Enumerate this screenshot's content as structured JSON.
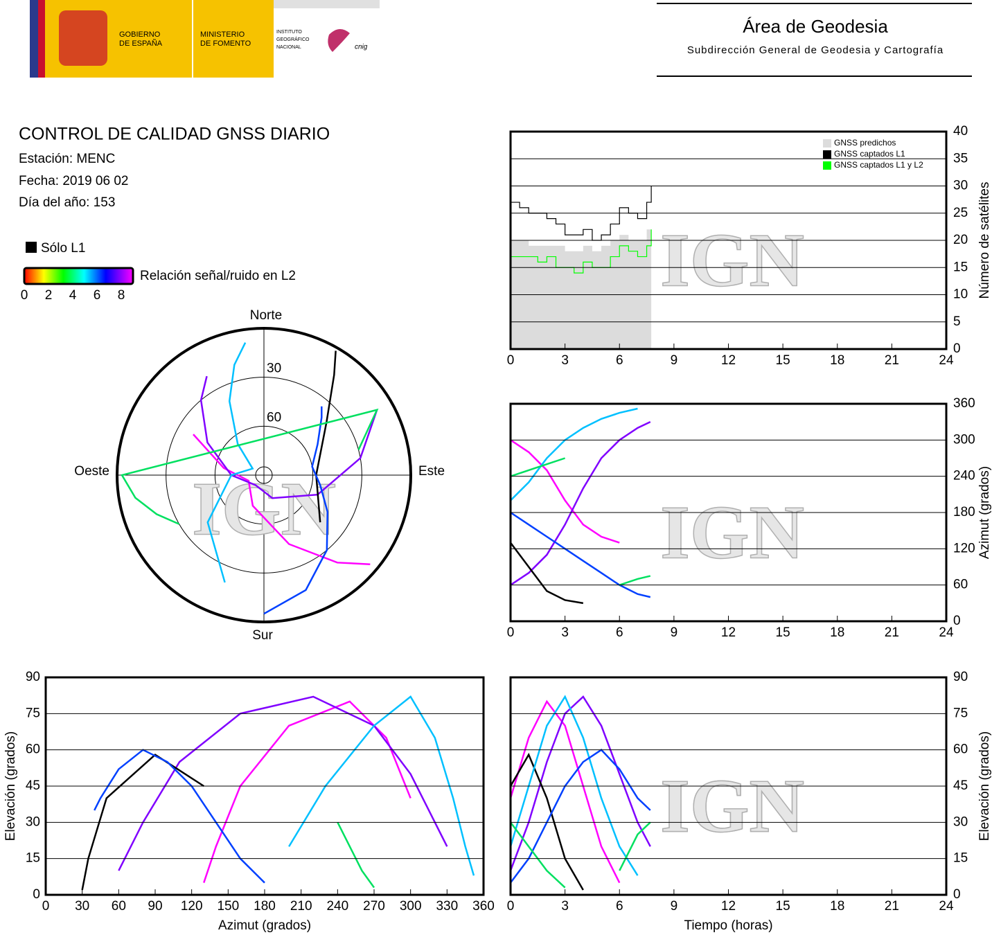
{
  "header": {
    "gov": [
      "GOBIERNO",
      "DE ESPAÑA"
    ],
    "ministry": [
      "MINISTERIO",
      "DE FOMENTO"
    ],
    "institute": [
      "INSTITUTO",
      "GEOGRÁFICO",
      "NACIONAL"
    ],
    "brand": "cnig",
    "area": "Área de Geodesia",
    "subdirection": "Subdirección General de Geodesia y Cartografía"
  },
  "info": {
    "title": "CONTROL DE CALIDAD GNSS DIARIO",
    "station": "Estación: MENC",
    "date": "Fecha: 2019 06 02",
    "doy": "Día del año: 153",
    "only_l1": "Sólo L1",
    "colorbar_label": "Relación señal/ruido en L2",
    "colorbar_ticks": [
      0,
      2,
      4,
      6,
      8
    ]
  },
  "watermark": "IGN",
  "chart_data": [
    {
      "type": "polar",
      "directions": {
        "north": "Norte",
        "south": "Sur",
        "east": "Este",
        "west": "Oeste"
      },
      "rticks": [
        30,
        60
      ],
      "series": [
        {
          "color": "#ff00ff",
          "x": [
            300,
            280,
            250,
            200,
            160,
            140,
            130
          ],
          "values": [
            40,
            65,
            80,
            70,
            45,
            20,
            5
          ]
        },
        {
          "color": "#8000ff",
          "x": [
            60,
            80,
            110,
            160,
            220,
            270,
            300,
            320,
            330
          ],
          "values": [
            10,
            30,
            55,
            75,
            82,
            70,
            50,
            30,
            20
          ]
        },
        {
          "color": "#000000",
          "x": [
            130,
            90,
            50,
            35,
            30
          ],
          "values": [
            45,
            58,
            40,
            15,
            2
          ]
        },
        {
          "color": "#00c0ff",
          "x": [
            200,
            230,
            270,
            300,
            320,
            335,
            345,
            352
          ],
          "values": [
            20,
            45,
            70,
            82,
            65,
            40,
            20,
            8
          ]
        },
        {
          "color": "#0040ff",
          "x": [
            180,
            160,
            140,
            120,
            100,
            80,
            60,
            45,
            40
          ],
          "values": [
            5,
            15,
            30,
            45,
            55,
            60,
            52,
            40,
            35
          ]
        },
        {
          "color": "#00e060",
          "x": [
            240,
            250,
            260,
            270,
            60,
            70,
            75
          ],
          "values": [
            30,
            20,
            10,
            3,
            10,
            25,
            30
          ]
        }
      ]
    },
    {
      "type": "step",
      "ylabel": "Número de satélites",
      "y_axis_position": "right",
      "legend": "upper right",
      "xlim": [
        0,
        24
      ],
      "xticks": [
        0,
        3,
        6,
        9,
        12,
        15,
        18,
        21,
        24
      ],
      "ylim": [
        0,
        40
      ],
      "yticks": [
        0,
        5,
        10,
        15,
        20,
        25,
        30,
        35,
        40
      ],
      "grid": true,
      "x": [
        0,
        0.5,
        1,
        1.5,
        2,
        2.5,
        3,
        3.5,
        4,
        4.5,
        5,
        5.5,
        6,
        6.5,
        7,
        7.5,
        7.75
      ],
      "series": [
        {
          "name": "GNSS predichos",
          "color": "#dcdcdc",
          "fill": true,
          "values": [
            20,
            20,
            19,
            19,
            19,
            19,
            18,
            18,
            19,
            18,
            19,
            20,
            21,
            20,
            20,
            22,
            24
          ]
        },
        {
          "name": "GNSS captados L1",
          "color": "#000000",
          "values": [
            27,
            26,
            25,
            25,
            24,
            23,
            21,
            21,
            22,
            20,
            21,
            23,
            26,
            25,
            24,
            27,
            30
          ]
        },
        {
          "name": "GNSS captados L1 y L2",
          "color": "#00ff00",
          "values": [
            17,
            17,
            17,
            16,
            17,
            15,
            15,
            14,
            16,
            15,
            15,
            17,
            19,
            18,
            17,
            19,
            22
          ]
        }
      ]
    },
    {
      "type": "line",
      "ylabel": "Azimut (grados)",
      "y_axis_position": "right",
      "xlim": [
        0,
        24
      ],
      "xticks": [
        0,
        3,
        6,
        9,
        12,
        15,
        18,
        21,
        24
      ],
      "ylim": [
        0,
        360
      ],
      "yticks": [
        0,
        60,
        120,
        180,
        240,
        300,
        360
      ],
      "grid": true,
      "x": [
        0,
        1,
        2,
        3,
        4,
        5,
        6,
        7,
        7.7
      ],
      "series": [
        {
          "color": "#ff00ff",
          "values": [
            300,
            280,
            250,
            200,
            160,
            140,
            130,
            null,
            null
          ]
        },
        {
          "color": "#8000ff",
          "values": [
            60,
            80,
            110,
            160,
            220,
            270,
            300,
            320,
            330
          ]
        },
        {
          "color": "#000000",
          "values": [
            130,
            90,
            50,
            35,
            30,
            null,
            null,
            null,
            null
          ]
        },
        {
          "color": "#00c0ff",
          "values": [
            200,
            230,
            270,
            300,
            320,
            335,
            345,
            352,
            null
          ]
        },
        {
          "color": "#0040ff",
          "values": [
            180,
            160,
            140,
            120,
            100,
            80,
            60,
            45,
            40
          ]
        },
        {
          "color": "#00e060",
          "values": [
            240,
            250,
            260,
            270,
            null,
            null,
            60,
            70,
            75
          ]
        }
      ]
    },
    {
      "type": "line",
      "xlabel": "Azimut (grados)",
      "ylabel": "Elevación (grados)",
      "y_axis_position": "left",
      "xlim": [
        0,
        360
      ],
      "xticks": [
        0,
        30,
        60,
        90,
        120,
        150,
        180,
        210,
        240,
        270,
        300,
        330,
        360
      ],
      "ylim": [
        0,
        90
      ],
      "yticks": [
        0,
        15,
        30,
        45,
        60,
        75,
        90
      ],
      "grid": true,
      "series": [
        {
          "color": "#ff00ff",
          "x": [
            300,
            280,
            250,
            200,
            160,
            140,
            130
          ],
          "values": [
            40,
            65,
            80,
            70,
            45,
            20,
            5
          ]
        },
        {
          "color": "#8000ff",
          "x": [
            60,
            80,
            110,
            160,
            220,
            270,
            300,
            320,
            330
          ],
          "values": [
            10,
            30,
            55,
            75,
            82,
            70,
            50,
            30,
            20
          ]
        },
        {
          "color": "#000000",
          "x": [
            130,
            90,
            50,
            35,
            30
          ],
          "values": [
            45,
            58,
            40,
            15,
            2
          ]
        },
        {
          "color": "#00c0ff",
          "x": [
            200,
            230,
            270,
            300,
            320,
            335,
            345,
            352
          ],
          "values": [
            20,
            45,
            70,
            82,
            65,
            40,
            20,
            8
          ]
        },
        {
          "color": "#0040ff",
          "x": [
            180,
            160,
            140,
            120,
            100,
            80,
            60,
            45,
            40
          ],
          "values": [
            5,
            15,
            30,
            45,
            55,
            60,
            52,
            40,
            35
          ]
        },
        {
          "color": "#00e060",
          "x": [
            240,
            250,
            260,
            270
          ],
          "values": [
            30,
            20,
            10,
            3
          ]
        }
      ]
    },
    {
      "type": "line",
      "xlabel": "Tiempo (horas)",
      "ylabel": "Elevación (grados)",
      "y_axis_position": "right",
      "xlim": [
        0,
        24
      ],
      "xticks": [
        0,
        3,
        6,
        9,
        12,
        15,
        18,
        21,
        24
      ],
      "ylim": [
        0,
        90
      ],
      "yticks": [
        0,
        15,
        30,
        45,
        60,
        75,
        90
      ],
      "grid": true,
      "x": [
        0,
        1,
        2,
        3,
        4,
        5,
        6,
        7,
        7.7
      ],
      "series": [
        {
          "color": "#ff00ff",
          "values": [
            40,
            65,
            80,
            70,
            45,
            20,
            5,
            null,
            null
          ]
        },
        {
          "color": "#8000ff",
          "values": [
            10,
            30,
            55,
            75,
            82,
            70,
            50,
            30,
            20
          ]
        },
        {
          "color": "#000000",
          "values": [
            45,
            58,
            40,
            15,
            2,
            null,
            null,
            null,
            null
          ]
        },
        {
          "color": "#00c0ff",
          "values": [
            20,
            45,
            70,
            82,
            65,
            40,
            20,
            8,
            null
          ]
        },
        {
          "color": "#0040ff",
          "values": [
            5,
            15,
            30,
            45,
            55,
            60,
            52,
            40,
            35
          ]
        },
        {
          "color": "#00e060",
          "values": [
            30,
            20,
            10,
            3,
            null,
            null,
            10,
            25,
            30
          ]
        }
      ]
    }
  ]
}
